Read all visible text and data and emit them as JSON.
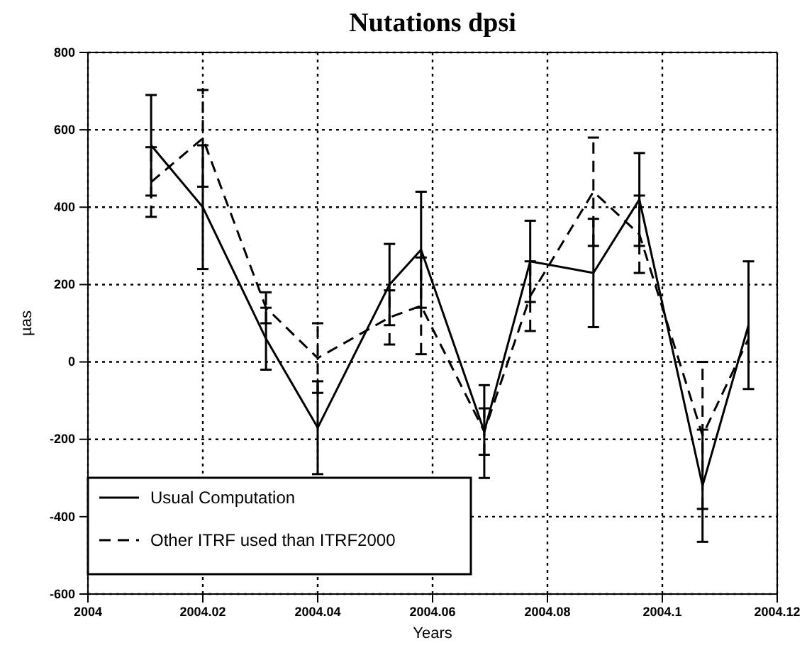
{
  "chart_data": {
    "type": "line",
    "title": "Nutations dpsi",
    "xlabel": "Years",
    "ylabel": "µas",
    "xlim": [
      2004,
      2004.12
    ],
    "xticks": [
      2004,
      2004.02,
      2004.04,
      2004.06,
      2004.08,
      2004.1,
      2004.12
    ],
    "ylim": [
      -600,
      800
    ],
    "yticks": [
      -600,
      -400,
      -200,
      0,
      200,
      400,
      600,
      800
    ],
    "grid": true,
    "legend": "bottom left",
    "marker": "none",
    "series": [
      {
        "name": "Usual Computation",
        "color": "#000000",
        "line_style": "solid",
        "x": [
          2004.011,
          2004.02,
          2004.031,
          2004.04,
          2004.0525,
          2004.058,
          2004.069,
          2004.077,
          2004.088,
          2004.096,
          2004.107,
          2004.115
        ],
        "values": [
          560,
          400,
          60,
          -170,
          200,
          290,
          -180,
          260,
          230,
          420,
          -320,
          95
        ],
        "errors": [
          130,
          160,
          80,
          120,
          105,
          150,
          120,
          105,
          140,
          120,
          145,
          165
        ]
      },
      {
        "name": "Other ITRF used than ITRF2000",
        "color": "#000000",
        "line_style": "dashed",
        "x": [
          2004.011,
          2004.02,
          2004.031,
          2004.04,
          2004.0525,
          2004.058,
          2004.069,
          2004.077,
          2004.088,
          2004.096,
          2004.107,
          2004.115
        ],
        "values": [
          465,
          578,
          140,
          10,
          115,
          145,
          -180,
          170,
          440,
          330,
          -190,
          60
        ],
        "errors": [
          90,
          125,
          40,
          90,
          70,
          125,
          60,
          90,
          140,
          100,
          190,
          null
        ]
      }
    ]
  }
}
